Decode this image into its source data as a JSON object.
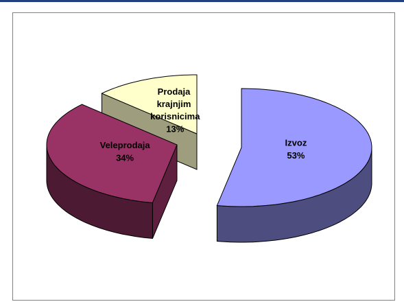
{
  "chart_data": {
    "type": "pie3d",
    "categories": [
      "Izvoz",
      "Veleprodaja",
      "Prodaja krajnjim korisnicima"
    ],
    "values": [
      53,
      34,
      13
    ],
    "value_labels": [
      "53%",
      "34%",
      "13%"
    ],
    "colors": [
      "#9999ff",
      "#993366",
      "#ffffcc"
    ]
  }
}
